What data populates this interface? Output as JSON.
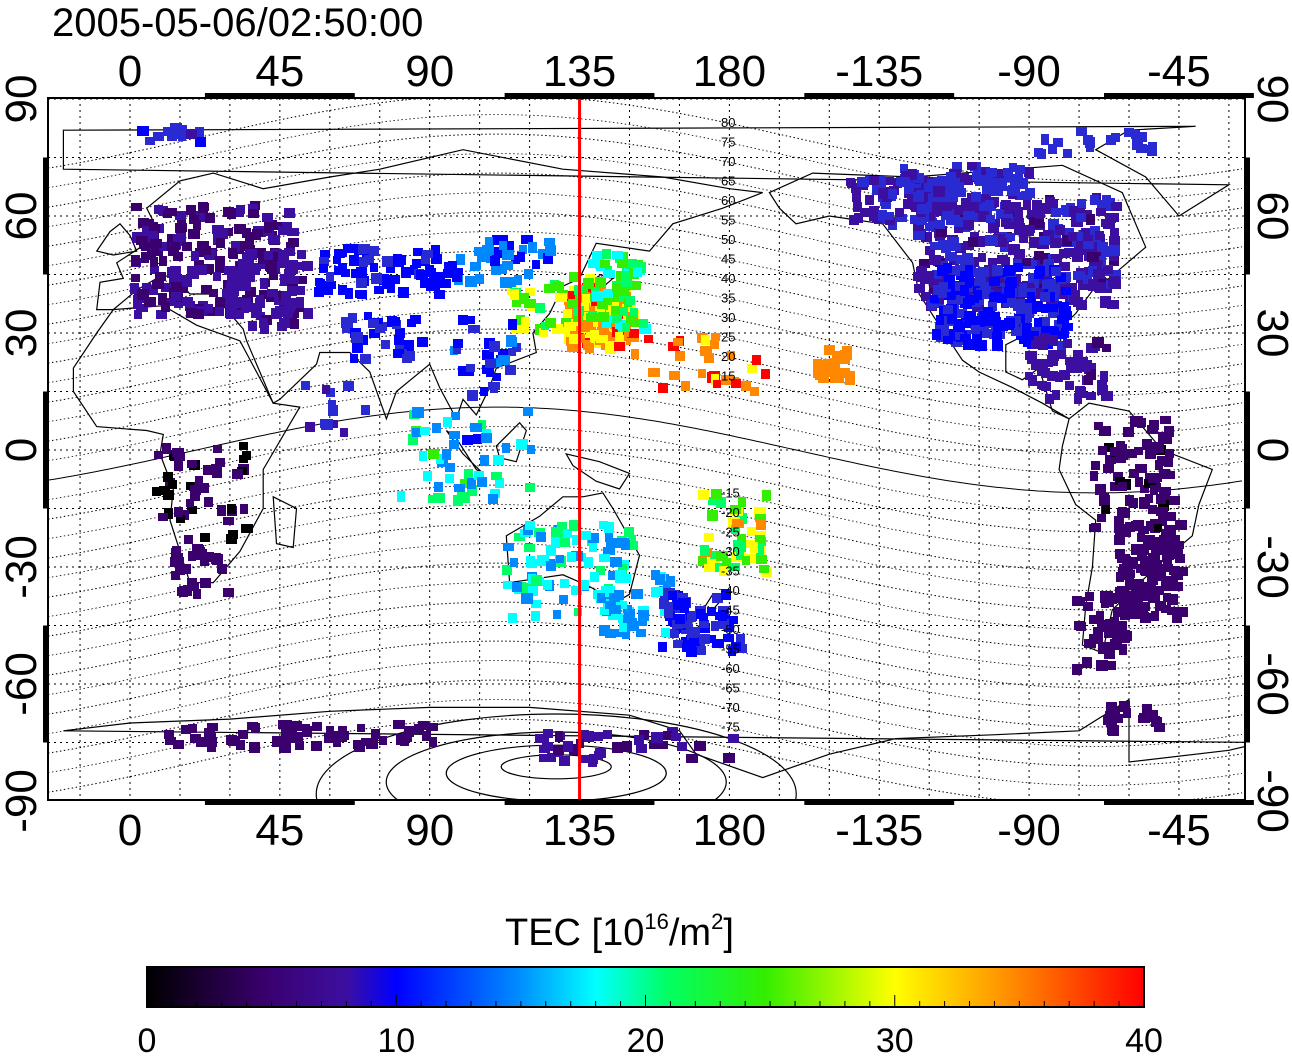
{
  "title": "2005-05-06/02:50:00",
  "map": {
    "lon_ticks": [
      "0",
      "45",
      "90",
      "135",
      "180",
      "-135",
      "-90",
      "-45"
    ],
    "lat_ticks": [
      "90",
      "60",
      "30",
      "0",
      "-30",
      "-60",
      "-90"
    ],
    "meridian_line_lon": "135",
    "maglat_north": [
      "80",
      "75",
      "70",
      "65",
      "60",
      "55",
      "50",
      "45",
      "40",
      "35",
      "30",
      "25",
      "20",
      "15"
    ],
    "maglat_south": [
      "-15",
      "-20",
      "-25",
      "-30",
      "-35",
      "-40",
      "-45",
      "-50",
      "-55",
      "-60",
      "-65",
      "-70",
      "-75"
    ]
  },
  "colorbar": {
    "label_main": "TEC  [10",
    "label_exp1": "16",
    "label_mid": "/m",
    "label_exp2": "2",
    "label_end": "]",
    "ticks": [
      "0",
      "10",
      "20",
      "30",
      "40"
    ],
    "range": [
      0,
      40
    ]
  },
  "colors": {
    "meridian": "#ff0000",
    "scale": [
      "#000000",
      "#3a006e",
      "#3c0fa0",
      "#2a2ad2",
      "#0000ff",
      "#0088ff",
      "#00ffff",
      "#00ff66",
      "#33ee00",
      "#ffff00",
      "#ff8800",
      "#ff0000"
    ]
  }
}
